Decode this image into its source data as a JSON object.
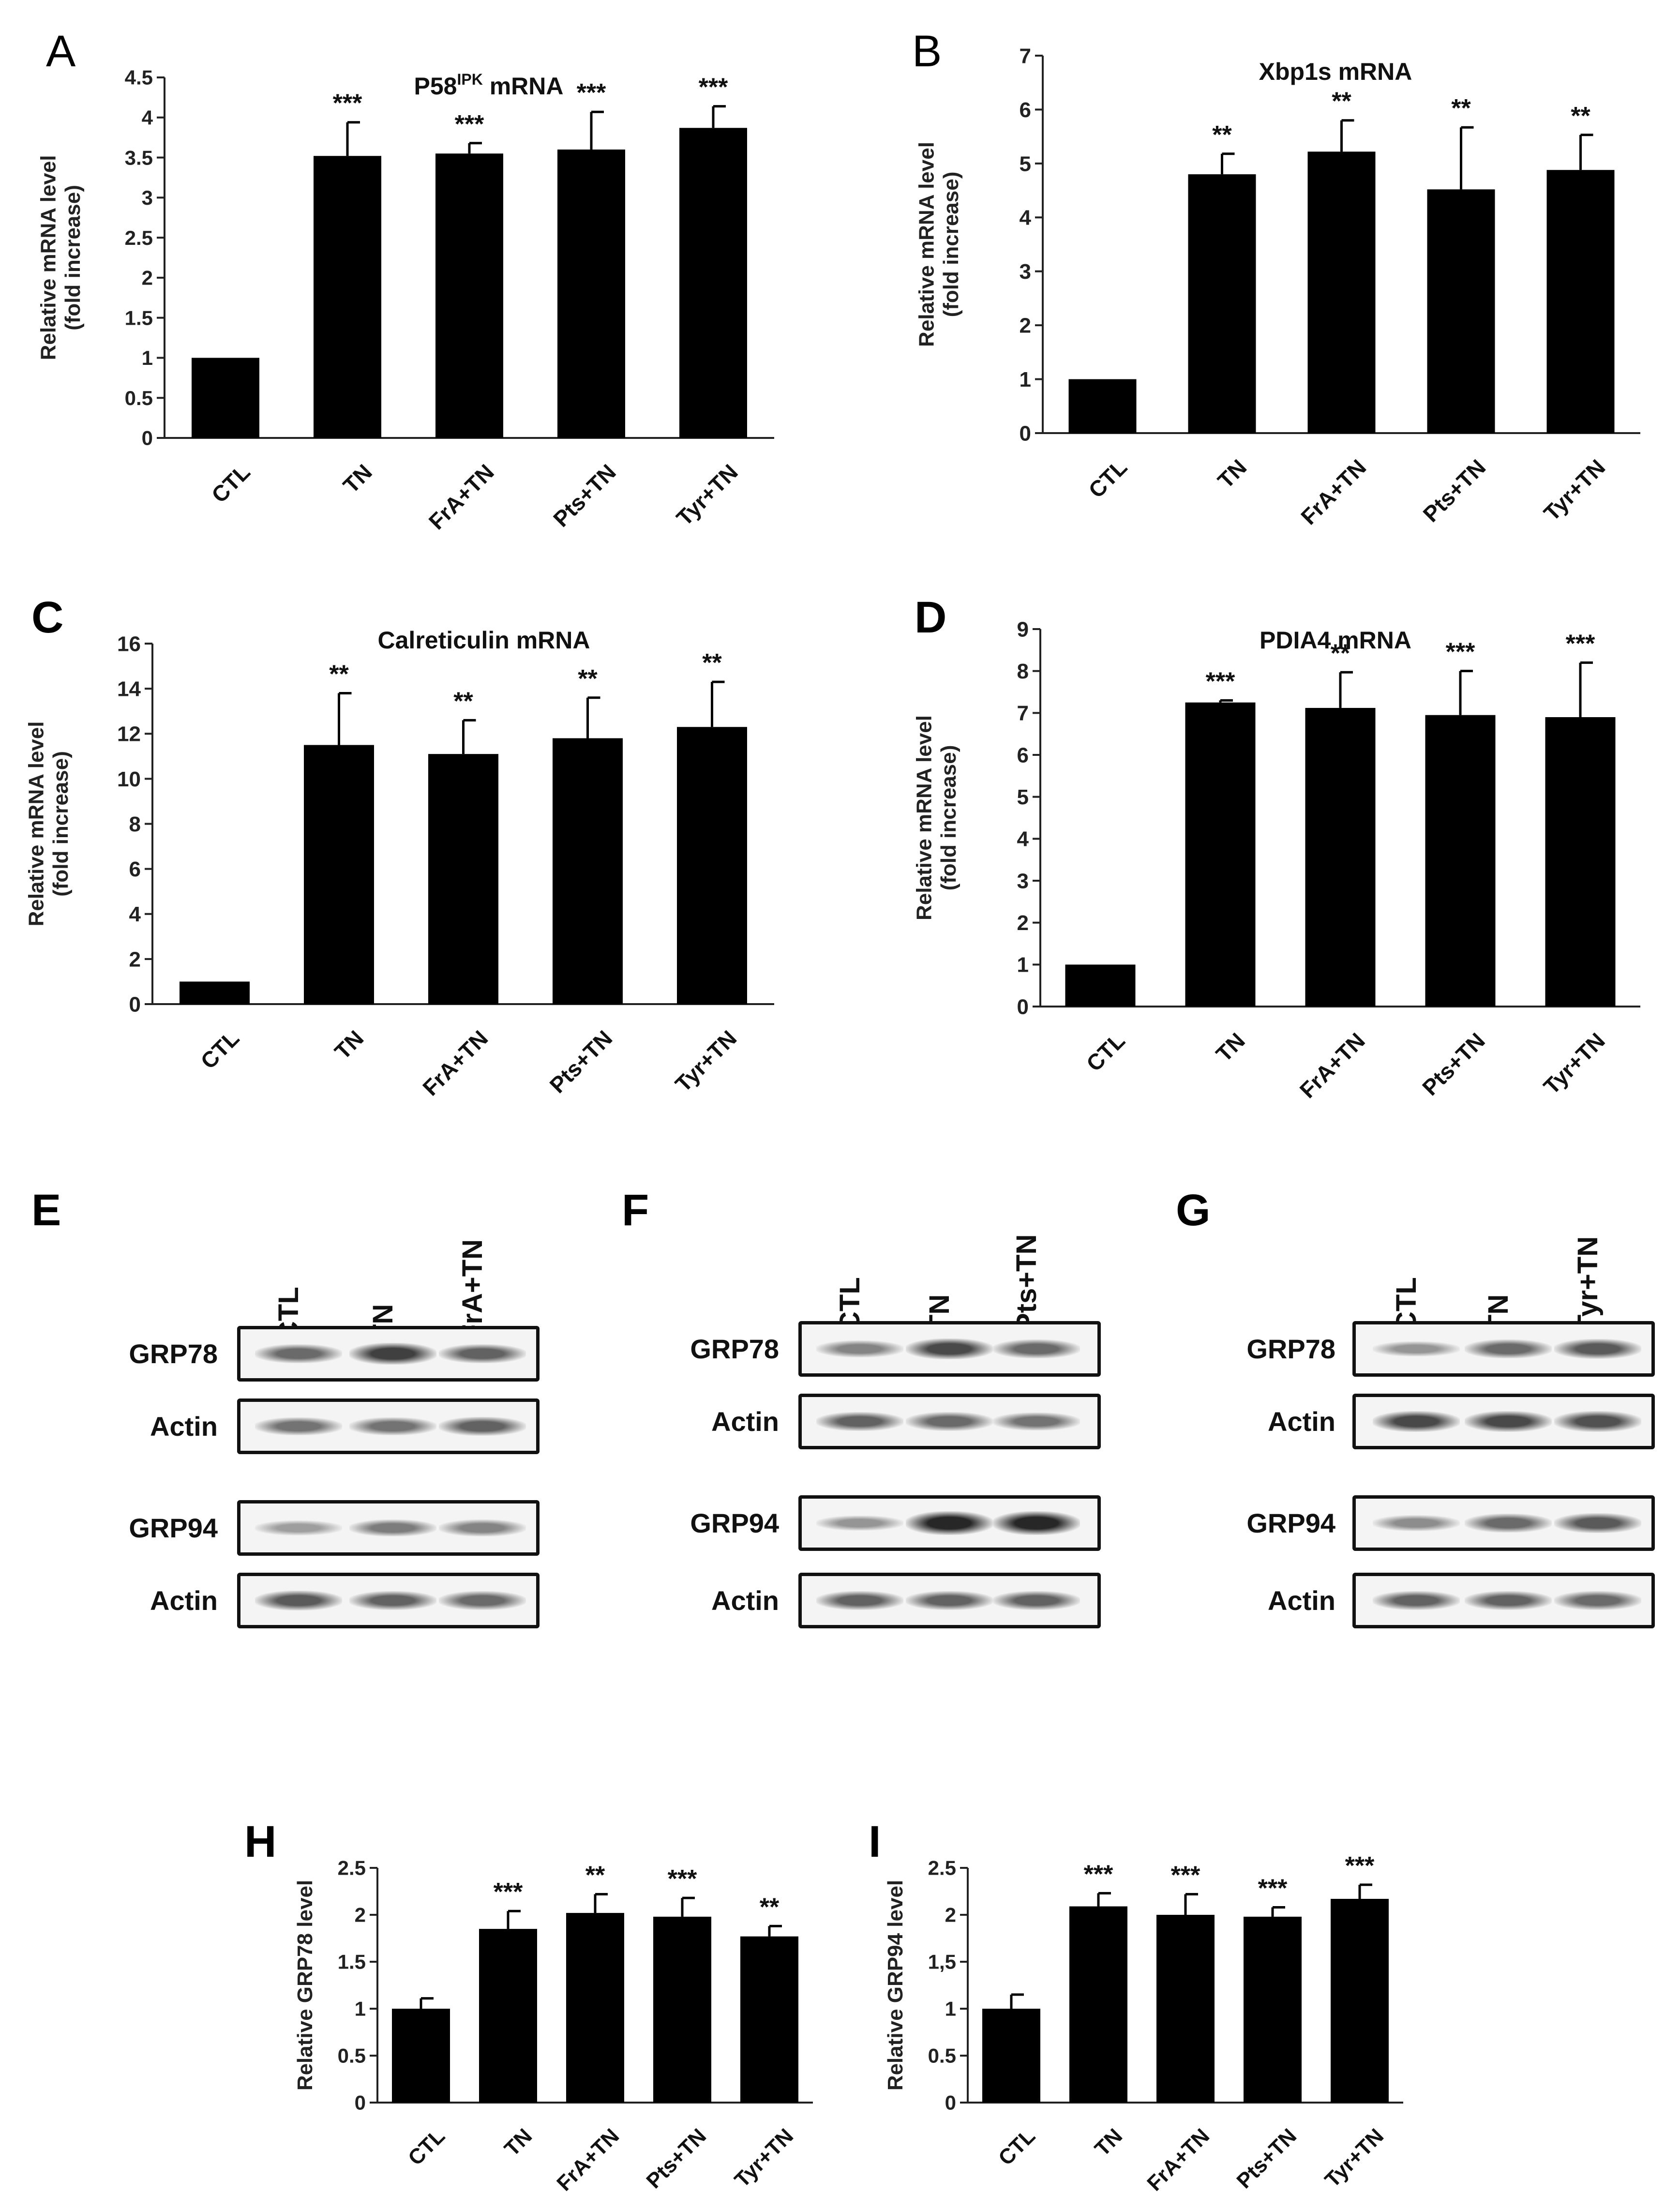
{
  "panels": {
    "A": "A",
    "B": "B",
    "C": "C",
    "D": "D",
    "E": "E",
    "F": "F",
    "G": "G",
    "H": "H",
    "I": "I"
  },
  "chart_data": [
    {
      "id": "A",
      "type": "bar",
      "title": "P58",
      "title_sup": "IPK",
      "title_suffix": " mRNA",
      "ylabel": [
        "Relative mRNA level",
        "(fold increase)"
      ],
      "categories": [
        "CTL",
        "TN",
        "FrA+TN",
        "Pts+TN",
        "Tyr+TN"
      ],
      "values": [
        1.0,
        3.52,
        3.55,
        3.6,
        3.87
      ],
      "errors": [
        0,
        0.42,
        0.13,
        0.47,
        0.27
      ],
      "significance": [
        "",
        "***",
        "***",
        "***",
        "***"
      ],
      "ylim": [
        0,
        4.5
      ],
      "yticks": [
        "0",
        "0.5",
        "1",
        "1.5",
        "2",
        "2.5",
        "3",
        "3.5",
        "4",
        "4.5"
      ]
    },
    {
      "id": "B",
      "type": "bar",
      "title": "Xbp1s mRNA",
      "ylabel": [
        "Relative mRNA level",
        "(fold increase)"
      ],
      "categories": [
        "CTL",
        "TN",
        "FrA+TN",
        "Pts+TN",
        "Tyr+TN"
      ],
      "values": [
        1.0,
        4.8,
        5.22,
        4.52,
        4.88
      ],
      "errors": [
        0,
        0.38,
        0.58,
        1.15,
        0.65
      ],
      "significance": [
        "",
        "**",
        "**",
        "**",
        "**"
      ],
      "ylim": [
        0,
        7
      ],
      "yticks": [
        "0",
        "1",
        "2",
        "3",
        "4",
        "5",
        "6",
        "7"
      ]
    },
    {
      "id": "C",
      "type": "bar",
      "title": "Calreticulin mRNA",
      "ylabel": [
        "Relative mRNA level",
        "(fold increase)"
      ],
      "categories": [
        "CTL",
        "TN",
        "FrA+TN",
        "Pts+TN",
        "Tyr+TN"
      ],
      "values": [
        1.0,
        11.5,
        11.1,
        11.8,
        12.3
      ],
      "errors": [
        0,
        2.3,
        1.5,
        1.8,
        2.0
      ],
      "significance": [
        "",
        "**",
        "**",
        "**",
        "**"
      ],
      "ylim": [
        0,
        16
      ],
      "yticks": [
        "0",
        "2",
        "4",
        "6",
        "8",
        "10",
        "12",
        "14",
        "16"
      ]
    },
    {
      "id": "D",
      "type": "bar",
      "title": "PDIA4 mRNA",
      "ylabel": [
        "Relative mRNA level",
        "(fold increase)"
      ],
      "categories": [
        "CTL",
        "TN",
        "FrA+TN",
        "Pts+TN",
        "Tyr+TN"
      ],
      "values": [
        1.0,
        7.25,
        7.12,
        6.95,
        6.9
      ],
      "errors": [
        0,
        0.05,
        0.85,
        1.05,
        1.3
      ],
      "significance": [
        "",
        "***",
        "**",
        "***",
        "***"
      ],
      "ylim": [
        0,
        9
      ],
      "yticks": [
        "0",
        "1",
        "2",
        "3",
        "4",
        "5",
        "6",
        "7",
        "8",
        "9"
      ]
    },
    {
      "id": "H",
      "type": "bar",
      "title": "",
      "ylabel": [
        "Relative GRP78 level"
      ],
      "categories": [
        "CTL",
        "TN",
        "FrA+TN",
        "Pts+TN",
        "Tyr+TN"
      ],
      "values": [
        1.0,
        1.85,
        2.02,
        1.98,
        1.77
      ],
      "errors": [
        0.11,
        0.19,
        0.2,
        0.2,
        0.11
      ],
      "significance": [
        "",
        "***",
        "**",
        "***",
        "**"
      ],
      "ylim": [
        0,
        2.5
      ],
      "yticks": [
        "0",
        "0.5",
        "1",
        "1.5",
        "2",
        "2.5"
      ]
    },
    {
      "id": "I",
      "type": "bar",
      "title": "",
      "ylabel": [
        "Relative GRP94 level"
      ],
      "categories": [
        "CTL",
        "TN",
        "FrA+TN",
        "Pts+TN",
        "Tyr+TN"
      ],
      "values": [
        1.0,
        2.09,
        2.0,
        1.98,
        2.17
      ],
      "errors": [
        0.15,
        0.14,
        0.22,
        0.1,
        0.15
      ],
      "significance": [
        "",
        "***",
        "***",
        "***",
        "***"
      ],
      "ylim": [
        0,
        2.5
      ],
      "yticks": [
        "0",
        "0.5",
        "1",
        "1,5",
        "2",
        "2.5"
      ]
    }
  ],
  "blots": [
    {
      "id": "E",
      "lanes": [
        "CTL",
        "TN",
        "FrA+TN"
      ],
      "rows": [
        {
          "label": "GRP78",
          "intensity": [
            0.55,
            0.8,
            0.6
          ]
        },
        {
          "label": "Actin",
          "intensity": [
            0.5,
            0.5,
            0.6
          ]
        },
        {
          "label": "GRP94",
          "intensity": [
            0.25,
            0.45,
            0.4
          ]
        },
        {
          "label": "Actin",
          "intensity": [
            0.65,
            0.6,
            0.55
          ]
        }
      ]
    },
    {
      "id": "F",
      "lanes": [
        "CTL",
        "TN",
        "Pts+TN"
      ],
      "rows": [
        {
          "label": "GRP78",
          "intensity": [
            0.4,
            0.75,
            0.55
          ]
        },
        {
          "label": "Actin",
          "intensity": [
            0.6,
            0.55,
            0.5
          ]
        },
        {
          "label": "GRP94",
          "intensity": [
            0.3,
            0.95,
            0.95
          ]
        },
        {
          "label": "Actin",
          "intensity": [
            0.6,
            0.6,
            0.6
          ]
        }
      ]
    },
    {
      "id": "G",
      "lanes": [
        "CTL",
        "TN",
        "Tyr+TN"
      ],
      "rows": [
        {
          "label": "GRP78",
          "intensity": [
            0.3,
            0.55,
            0.65
          ]
        },
        {
          "label": "Actin",
          "intensity": [
            0.75,
            0.75,
            0.7
          ]
        },
        {
          "label": "GRP94",
          "intensity": [
            0.35,
            0.55,
            0.65
          ]
        },
        {
          "label": "Actin",
          "intensity": [
            0.6,
            0.6,
            0.55
          ]
        }
      ]
    }
  ]
}
